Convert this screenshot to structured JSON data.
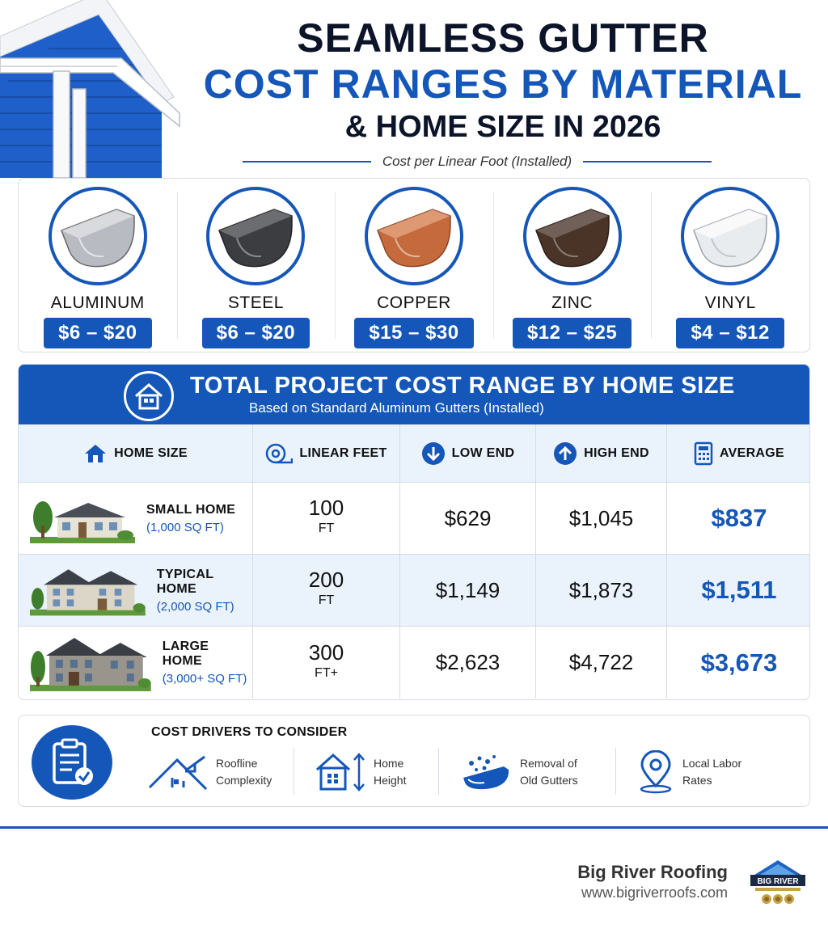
{
  "header": {
    "title_line1": "SEAMLESS GUTTER",
    "title_line2": "COST RANGES BY MATERIAL",
    "title_line3": "& HOME SIZE IN 2026",
    "subtitle": "Cost per Linear Foot (Installed)"
  },
  "materials": [
    {
      "name": "ALUMINUM",
      "price": "$6 – $20",
      "color": "#b8bcc2"
    },
    {
      "name": "STEEL",
      "price": "$6 – $20",
      "color": "#3b3d40"
    },
    {
      "name": "COPPER",
      "price": "$15 – $30",
      "color": "#c46a3c"
    },
    {
      "name": "ZINC",
      "price": "$12 – $25",
      "color": "#4a3428"
    },
    {
      "name": "VINYL",
      "price": "$4 – $12",
      "color": "#e9ecef"
    }
  ],
  "table": {
    "title": "TOTAL PROJECT COST RANGE BY HOME SIZE",
    "subtitle": "Based on Standard Aluminum Gutters (Installed)",
    "columns": {
      "home_size": "HOME SIZE",
      "linear_feet": "LINEAR FEET",
      "low_end": "LOW END",
      "high_end": "HIGH END",
      "average": "AVERAGE"
    },
    "rows": [
      {
        "name": "SMALL HOME",
        "size": "(1,000 SQ FT)",
        "feet": "100",
        "unit": "FT",
        "low": "$629",
        "high": "$1,045",
        "avg": "$837"
      },
      {
        "name": "TYPICAL HOME",
        "size": "(2,000 SQ FT)",
        "feet": "200",
        "unit": "FT",
        "low": "$1,149",
        "high": "$1,873",
        "avg": "$1,511"
      },
      {
        "name": "LARGE HOME",
        "size": "(3,000+ SQ FT)",
        "feet": "300",
        "unit": "FT+",
        "low": "$2,623",
        "high": "$4,722",
        "avg": "$3,673"
      }
    ]
  },
  "drivers": {
    "title": "COST DRIVERS TO CONSIDER",
    "items": [
      {
        "line1": "Roofline",
        "line2": "Complexity",
        "icon": "roofline-icon"
      },
      {
        "line1": "Home",
        "line2": "Height",
        "icon": "home-height-icon"
      },
      {
        "line1": "Removal of",
        "line2": "Old Gutters",
        "icon": "gutter-removal-icon"
      },
      {
        "line1": "Local Labor",
        "line2": "Rates",
        "icon": "location-pin-icon"
      }
    ]
  },
  "footer": {
    "brand_name": "Big River Roofing",
    "brand_url": "www.bigriverroofs.com",
    "logo_text": "BIG RIVER"
  },
  "colors": {
    "accent": "#1557b8",
    "dark": "#0b1428",
    "light_row": "#eaf2fc"
  }
}
